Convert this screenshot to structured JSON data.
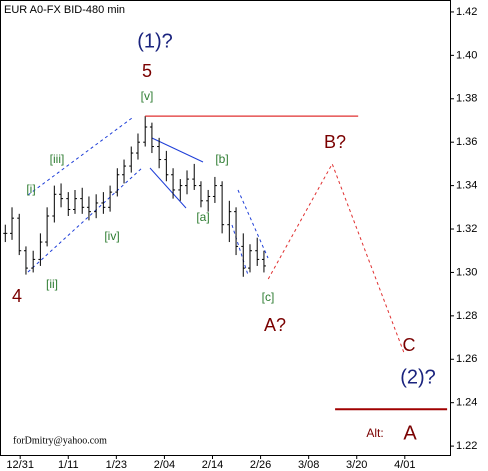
{
  "chart_data": {
    "type": "ohlc",
    "title": "EUR A0-FX BID-480 min",
    "color": "#000000",
    "ohlc": {
      "x": [
        -0.31,
        -0.17,
        -0.02,
        0.12,
        0.27,
        0.42,
        0.56,
        0.71,
        0.85,
        1.0,
        1.14,
        1.29,
        1.43,
        1.58,
        1.73,
        1.87,
        2.02,
        2.16,
        2.31,
        2.45,
        2.6,
        2.74,
        2.89,
        3.04,
        3.18,
        3.33,
        3.47,
        3.62,
        3.76,
        3.91,
        4.05,
        4.2,
        4.35,
        4.49,
        4.64,
        4.78,
        4.93,
        5.07
      ],
      "open": [
        1.318,
        1.318,
        1.325,
        1.31,
        1.302,
        1.306,
        1.314,
        1.326,
        1.336,
        1.334,
        1.329,
        1.334,
        1.33,
        1.328,
        1.332,
        1.33,
        1.337,
        1.345,
        1.349,
        1.355,
        1.36,
        1.367,
        1.358,
        1.352,
        1.345,
        1.338,
        1.34,
        1.343,
        1.34,
        1.333,
        1.335,
        1.34,
        1.322,
        1.328,
        1.312,
        1.302,
        1.31,
        1.306
      ],
      "high": [
        1.322,
        1.33,
        1.327,
        1.312,
        1.31,
        1.318,
        1.33,
        1.34,
        1.341,
        1.337,
        1.338,
        1.339,
        1.335,
        1.336,
        1.337,
        1.34,
        1.348,
        1.352,
        1.358,
        1.364,
        1.372,
        1.369,
        1.362,
        1.356,
        1.348,
        1.343,
        1.347,
        1.35,
        1.342,
        1.338,
        1.344,
        1.342,
        1.333,
        1.33,
        1.318,
        1.313,
        1.316,
        1.31
      ],
      "low": [
        1.314,
        1.315,
        1.308,
        1.299,
        1.3,
        1.303,
        1.312,
        1.323,
        1.33,
        1.326,
        1.327,
        1.327,
        1.324,
        1.325,
        1.327,
        1.328,
        1.335,
        1.341,
        1.346,
        1.352,
        1.358,
        1.355,
        1.348,
        1.342,
        1.334,
        1.333,
        1.336,
        1.338,
        1.33,
        1.328,
        1.332,
        1.318,
        1.314,
        1.308,
        1.298,
        1.3,
        1.303,
        1.3
      ],
      "close": [
        1.318,
        1.325,
        1.31,
        1.302,
        1.306,
        1.314,
        1.326,
        1.336,
        1.334,
        1.329,
        1.334,
        1.33,
        1.328,
        1.332,
        1.33,
        1.337,
        1.345,
        1.349,
        1.355,
        1.36,
        1.367,
        1.358,
        1.352,
        1.345,
        1.338,
        1.34,
        1.343,
        1.34,
        1.333,
        1.335,
        1.34,
        1.322,
        1.328,
        1.312,
        1.302,
        1.31,
        1.306,
        1.303
      ]
    },
    "level": {
      "x": [
        2.6,
        7.03
      ],
      "y": 1.372,
      "color": "#e03030"
    },
    "projection": {
      "x": [
        5.16,
        6.49,
        8.0
      ],
      "y": [
        1.297,
        1.35,
        1.262
      ],
      "color": "#e03030"
    },
    "alt_level": {
      "x": [
        6.55,
        8.88
      ],
      "y": 1.237,
      "color": "#a00000"
    },
    "annotations": [
      "(1)?",
      "5",
      "[v]",
      "[iii]",
      "[i]",
      "[ii]",
      "[iv]",
      "4",
      "[b]",
      "[a]",
      "[c]",
      "A?",
      "B?",
      "C",
      "(2)?",
      "Alt:",
      "A",
      "forDmitry@yahoo.com"
    ],
    "xlim": [
      -0.42,
      8.94
    ],
    "xticks": [
      {
        "value": 0,
        "label": "12/31"
      },
      {
        "value": 1,
        "label": "1/11"
      },
      {
        "value": 2,
        "label": "1/23"
      },
      {
        "value": 3,
        "label": "2/04"
      },
      {
        "value": 4,
        "label": "2/14"
      },
      {
        "value": 5,
        "label": "2/26"
      },
      {
        "value": 6,
        "label": "3/08"
      },
      {
        "value": 7,
        "label": "3/20"
      },
      {
        "value": 8,
        "label": "4/01"
      }
    ],
    "ylim": [
      1.2159,
      1.4255
    ],
    "yticks": [
      1.22,
      1.24,
      1.26,
      1.28,
      {
        "value": 1.3,
        "label": "1.30"
      },
      1.32,
      1.34,
      1.36,
      1.38,
      {
        "value": 1.4,
        "label": "1.40"
      },
      1.42
    ]
  }
}
